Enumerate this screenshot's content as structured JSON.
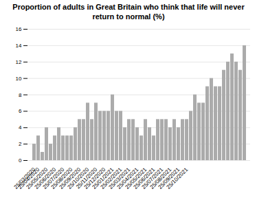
{
  "chart_data": {
    "type": "bar",
    "title": "Proportion of adults in Great Britain who think that life will never return to normal (%)",
    "categories": [
      "25/03/2020",
      "25/04/2020",
      null,
      "25/05/2020",
      null,
      "25/06/2020",
      null,
      "25/07/2020",
      null,
      "25/08/2020",
      null,
      "25/09/2020",
      null,
      "25/10/2020",
      null,
      "25/11/2020",
      null,
      "25/12/2020",
      null,
      "25/01/2021",
      null,
      "25/02/2021",
      null,
      "25/03/2021",
      null,
      "25/04/2021",
      null,
      "25/05/2021",
      null,
      "25/06/2021",
      null,
      "25/07/2021",
      null,
      "25/08/2021",
      null,
      "25/09/2021",
      null,
      "25/10/2021",
      null,
      null,
      null,
      null,
      null,
      null,
      null,
      null,
      null,
      null,
      null,
      null,
      null,
      null
    ],
    "values": [
      2,
      3,
      1,
      4,
      2,
      3,
      4,
      3,
      3,
      3,
      4,
      5,
      5,
      7,
      5,
      7,
      6,
      6,
      6,
      8,
      6,
      6,
      4,
      5,
      5,
      4,
      3,
      5,
      4,
      3,
      5,
      5,
      5,
      4,
      5,
      4,
      5,
      5,
      6,
      8,
      7,
      7,
      9,
      10,
      9,
      9,
      11,
      12,
      13,
      12,
      11,
      14
    ],
    "color": "#ababab",
    "ylim": [
      0,
      16
    ],
    "yticks": [
      0,
      2,
      4,
      6,
      8,
      10,
      12,
      14,
      16
    ],
    "grid": true
  }
}
